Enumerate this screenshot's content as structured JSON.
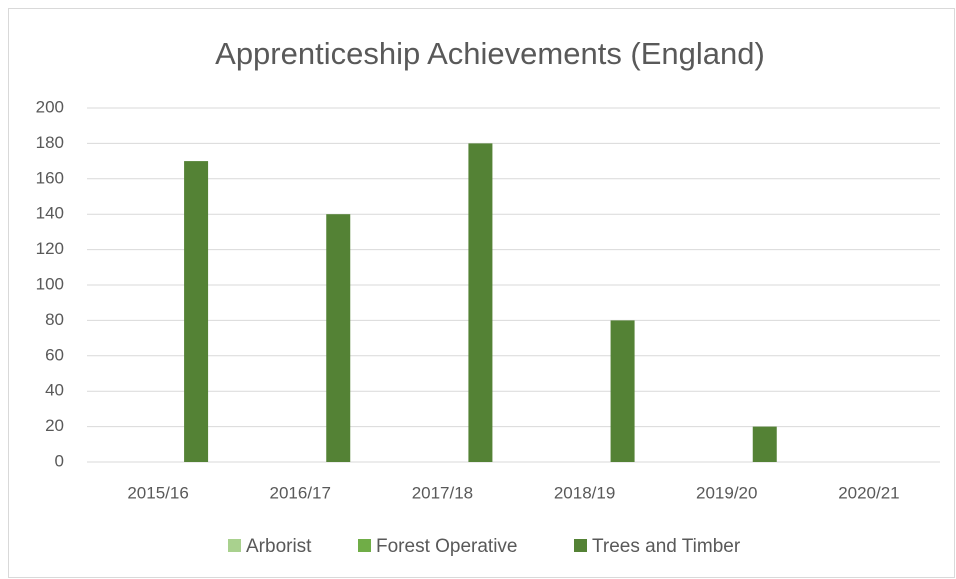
{
  "chart_data": {
    "type": "bar",
    "title": "Apprenticeship Achievements (England)",
    "categories": [
      "2015/16",
      "2016/17",
      "2017/18",
      "2018/19",
      "2019/20",
      "2020/21"
    ],
    "series": [
      {
        "name": "Arborist",
        "color": "#a9d18e",
        "values": [
          0,
          0,
          0,
          0,
          0,
          0
        ]
      },
      {
        "name": "Forest Operative",
        "color": "#70ad47",
        "values": [
          0,
          0,
          0,
          0,
          0,
          0
        ]
      },
      {
        "name": "Trees and Timber",
        "color": "#548235",
        "values": [
          170,
          140,
          180,
          80,
          20,
          0
        ]
      }
    ],
    "ylim": [
      0,
      200
    ],
    "yticks": [
      0,
      20,
      40,
      60,
      80,
      100,
      120,
      140,
      160,
      180,
      200
    ],
    "grid": true,
    "legend": "bottom"
  }
}
